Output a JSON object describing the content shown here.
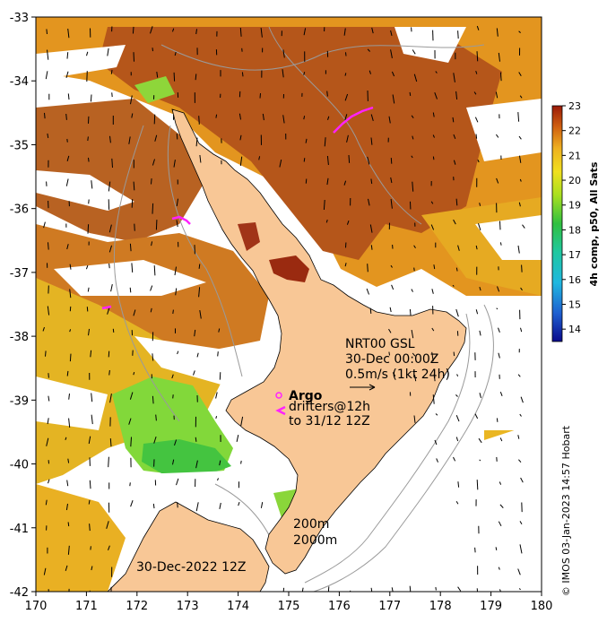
{
  "map": {
    "lon_ticks": [
      "170",
      "171",
      "172",
      "173",
      "174",
      "175",
      "176",
      "177",
      "178",
      "179",
      "180"
    ],
    "lat_ticks": [
      "-33",
      "-34",
      "-35",
      "-36",
      "-37",
      "-38",
      "-39",
      "-40",
      "-41",
      "-42"
    ],
    "lon_range": [
      170,
      180
    ],
    "lat_range": [
      -42,
      -33
    ],
    "colors": {
      "land": "#f8c796",
      "sst_warm": "#b4520e",
      "sst_mid": "#e08a1c",
      "sst_cool": "#e9b320",
      "sst_green": "#7ed63a",
      "contour": "#9a9a9a",
      "drifter": "#ff22ff"
    }
  },
  "colorbar": {
    "title": "4h comp, p50, All Sats",
    "ticks": [
      "23",
      "22",
      "21",
      "20",
      "19",
      "18",
      "17",
      "16",
      "15",
      "14"
    ],
    "range": [
      13.5,
      23
    ]
  },
  "annotations": {
    "nrt_line1": "NRT00 GSL",
    "nrt_line2": "30-Dec 00:00Z",
    "nrt_line3": "0.5m/s (1kt 24h)",
    "argo": "Argo",
    "drifters_line1": "drifters@12h",
    "drifters_line2": "to 31/12 12Z",
    "depth_200": "200m",
    "depth_2000": "2000m",
    "date": "30-Dec-2022 12Z",
    "credit": "© IMOS 03-Jan-2023 14:57 Hobart"
  }
}
